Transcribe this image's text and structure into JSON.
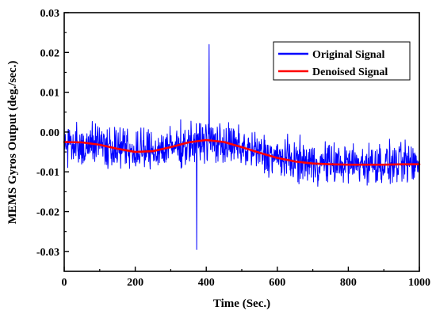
{
  "chart_data": {
    "type": "line",
    "title": "",
    "xlabel": "Time (Sec.)",
    "ylabel": "MEMS Gyros Output (deg./sec.)",
    "xlim": [
      0,
      1000
    ],
    "ylim": [
      -0.035,
      0.03
    ],
    "x_ticks": [
      0,
      200,
      400,
      600,
      800,
      1000
    ],
    "x_tick_labels": [
      "0",
      "200",
      "400",
      "600",
      "800",
      "1000"
    ],
    "y_ticks": [
      -0.03,
      -0.02,
      -0.01,
      0.0,
      0.01,
      0.02,
      0.03
    ],
    "y_tick_labels": [
      "-0.03",
      "-0.02",
      "-0.01",
      "0.00",
      "0.01",
      "0.02",
      "0.03"
    ],
    "grid": false,
    "legend": {
      "position": "top-right"
    },
    "series": [
      {
        "name": "Original Signal",
        "color": "#0000ff",
        "style": "noisy",
        "x": [
          0,
          1000
        ],
        "trend_x": [
          0,
          100,
          200,
          300,
          400,
          500,
          600,
          700,
          800,
          900,
          1000
        ],
        "trend_y": [
          -0.0025,
          -0.003,
          -0.005,
          -0.004,
          -0.002,
          -0.004,
          -0.0065,
          -0.0078,
          -0.008,
          -0.008,
          -0.008
        ],
        "noise_amplitude": 0.0075,
        "y_max": 0.022,
        "y_max_at_x": 408,
        "y_min": -0.0295,
        "y_min_at_x": 373
      },
      {
        "name": "Denoised Signal",
        "color": "#ff0000",
        "style": "smooth",
        "x": [
          0,
          50,
          100,
          150,
          200,
          250,
          300,
          350,
          400,
          450,
          500,
          550,
          600,
          650,
          700,
          750,
          800,
          850,
          900,
          950,
          1000
        ],
        "y": [
          -0.0025,
          -0.0026,
          -0.0032,
          -0.0042,
          -0.005,
          -0.0048,
          -0.0038,
          -0.0026,
          -0.002,
          -0.0025,
          -0.0038,
          -0.0052,
          -0.0065,
          -0.0074,
          -0.0079,
          -0.0081,
          -0.0082,
          -0.0082,
          -0.0082,
          -0.0081,
          -0.0081
        ]
      }
    ]
  }
}
